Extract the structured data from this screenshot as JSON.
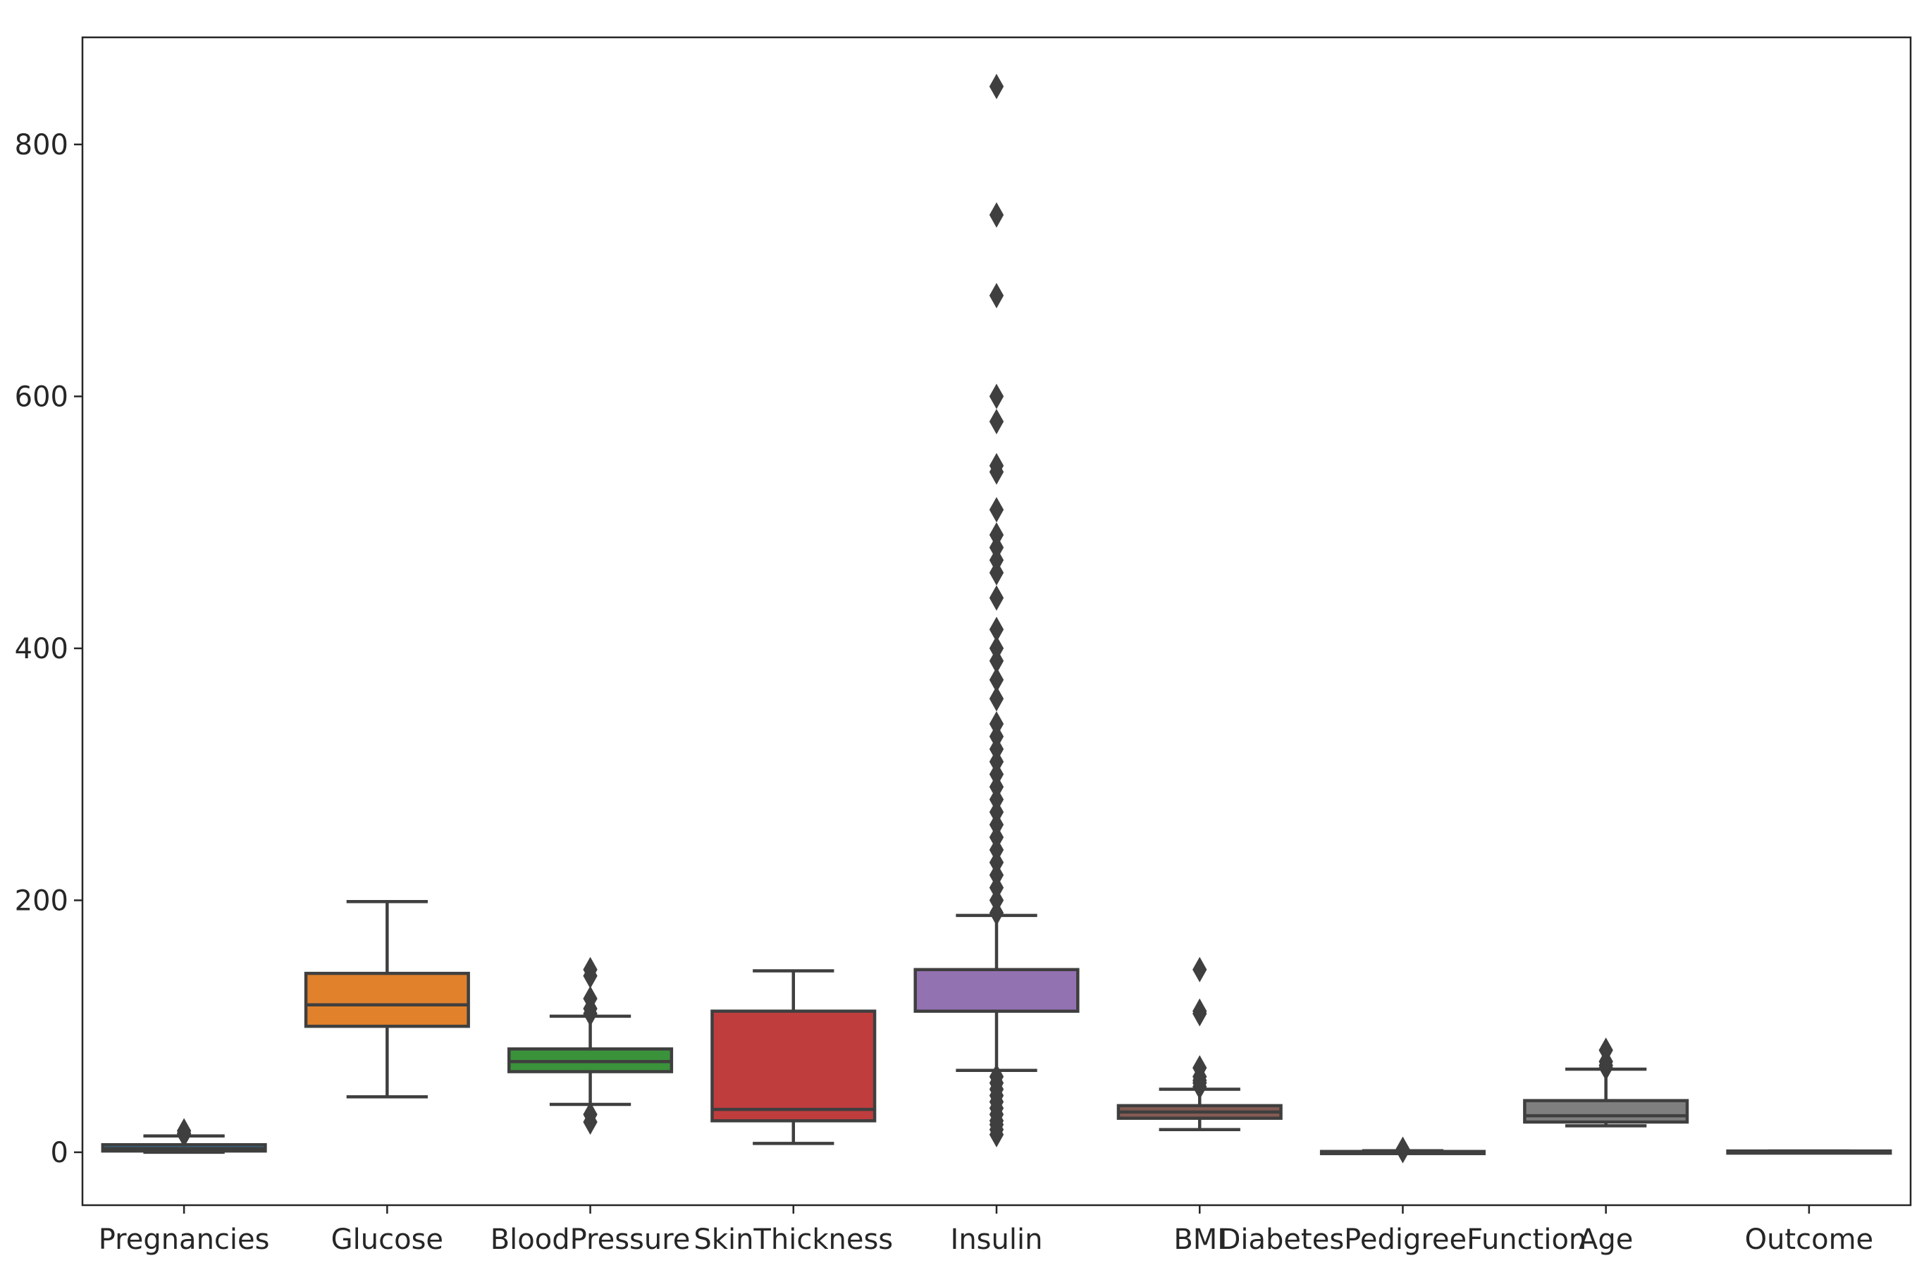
{
  "chart_data": {
    "type": "boxplot",
    "title": "",
    "xlabel": "",
    "ylabel": "",
    "ylim": [
      -42,
      885
    ],
    "yticks": [
      0,
      200,
      400,
      600,
      800
    ],
    "ytick_labels": [
      "0",
      "200",
      "400",
      "600",
      "800"
    ],
    "grid": false,
    "categories": [
      "Pregnancies",
      "Glucose",
      "BloodPressure",
      "SkinThickness",
      "Insulin",
      "BMI",
      "DiabetesPedigreeFunction",
      "Age",
      "Outcome"
    ],
    "colors": [
      "#3274a1",
      "#e1812c",
      "#3a923a",
      "#c03d3e",
      "#9372b2",
      "#845b53",
      "#d684bd",
      "#7f7f7f",
      "#a9aa35"
    ],
    "edge_color": "#3f3f3f",
    "boxes": [
      {
        "name": "Pregnancies",
        "whislo": 0,
        "q1": 1,
        "med": 3,
        "q3": 6,
        "whishi": 13,
        "fliers": [
          14,
          15,
          17
        ]
      },
      {
        "name": "Glucose",
        "whislo": 44,
        "q1": 100,
        "med": 117,
        "q3": 142,
        "whishi": 199,
        "fliers": []
      },
      {
        "name": "BloodPressure",
        "whislo": 38,
        "q1": 64,
        "med": 72,
        "q3": 82,
        "whishi": 108,
        "fliers": [
          24,
          30,
          110,
          114,
          122,
          140,
          145
        ]
      },
      {
        "name": "SkinThickness",
        "whislo": 7,
        "q1": 25,
        "med": 34,
        "q3": 112,
        "whishi": 144,
        "fliers": []
      },
      {
        "name": "Insulin",
        "whislo": 65,
        "q1": 112,
        "med": 112,
        "q3": 145,
        "whishi": 188,
        "fliers": [
          14,
          18,
          22,
          25,
          30,
          35,
          40,
          45,
          50,
          55,
          60,
          190,
          200,
          210,
          220,
          230,
          240,
          250,
          260,
          270,
          280,
          290,
          300,
          310,
          320,
          330,
          340,
          360,
          375,
          390,
          400,
          415,
          440,
          460,
          470,
          480,
          490,
          510,
          540,
          545,
          580,
          600,
          680,
          744,
          846
        ]
      },
      {
        "name": "BMI",
        "whislo": 18,
        "q1": 27,
        "med": 32,
        "q3": 37,
        "whishi": 50,
        "fliers": [
          52,
          55,
          57,
          60,
          67,
          110,
          112,
          145
        ]
      },
      {
        "name": "DiabetesPedigreeFunction",
        "whislo": 0.08,
        "q1": 0.24,
        "med": 0.37,
        "q3": 0.63,
        "whishi": 1.2,
        "fliers": [
          1.3,
          1.6,
          2.0,
          2.4
        ]
      },
      {
        "name": "Age",
        "whislo": 21,
        "q1": 24,
        "med": 29,
        "q3": 41,
        "whishi": 66,
        "fliers": [
          67,
          69,
          72,
          81
        ]
      },
      {
        "name": "Outcome",
        "whislo": 0,
        "q1": 0,
        "med": 0,
        "q3": 1,
        "whishi": 1,
        "fliers": []
      }
    ]
  }
}
